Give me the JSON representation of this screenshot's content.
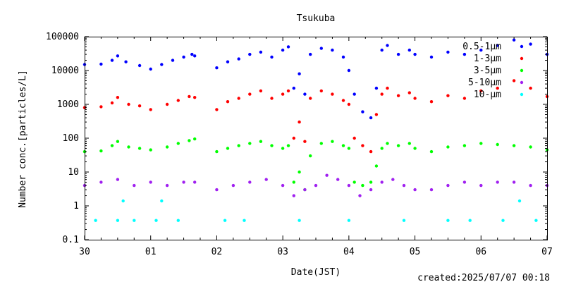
{
  "chart_data": {
    "type": "scatter",
    "title": "Tsukuba",
    "xlabel": "Date(JST)",
    "ylabel": "Number conc.[particles/L]",
    "y_scale": "log",
    "ylim": [
      0.1,
      100000
    ],
    "xlim": [
      "2025-06-30",
      "2025-07-07"
    ],
    "x_ticks": [
      "30",
      "01",
      "02",
      "03",
      "04",
      "05",
      "06",
      "07"
    ],
    "y_ticks": [
      "0.1",
      "1",
      "10",
      "100",
      "1000",
      "10000",
      "100000"
    ],
    "grid": false,
    "legend_position": "top-right",
    "footer": "created:2025/07/07 00:18",
    "series": [
      {
        "name": "0.5-1μm",
        "color": "#0000ff",
        "points": [
          [
            "2025-06-30 00:00",
            15000
          ],
          [
            "2025-06-30 06:00",
            15500
          ],
          [
            "2025-06-30 10:00",
            20000
          ],
          [
            "2025-06-30 12:00",
            27000
          ],
          [
            "2025-06-30 15:00",
            18000
          ],
          [
            "2025-06-30 20:00",
            14000
          ],
          [
            "2025-07-01 00:00",
            11000
          ],
          [
            "2025-07-01 04:00",
            15000
          ],
          [
            "2025-07-01 08:00",
            20000
          ],
          [
            "2025-07-01 12:00",
            25000
          ],
          [
            "2025-07-01 15:00",
            30000
          ],
          [
            "2025-07-01 16:00",
            27000
          ],
          [
            "2025-07-02 00:00",
            12000
          ],
          [
            "2025-07-02 04:00",
            18000
          ],
          [
            "2025-07-02 08:00",
            22000
          ],
          [
            "2025-07-02 12:00",
            30000
          ],
          [
            "2025-07-02 16:00",
            35000
          ],
          [
            "2025-07-02 20:00",
            25000
          ],
          [
            "2025-07-03 00:00",
            40000
          ],
          [
            "2025-07-03 02:00",
            50000
          ],
          [
            "2025-07-03 04:00",
            3000
          ],
          [
            "2025-07-03 06:00",
            8000
          ],
          [
            "2025-07-03 08:00",
            2000
          ],
          [
            "2025-07-03 10:00",
            30000
          ],
          [
            "2025-07-03 14:00",
            45000
          ],
          [
            "2025-07-03 18:00",
            40000
          ],
          [
            "2025-07-03 22:00",
            25000
          ],
          [
            "2025-07-04 00:00",
            10000
          ],
          [
            "2025-07-04 02:00",
            2000
          ],
          [
            "2025-07-04 05:00",
            600
          ],
          [
            "2025-07-04 08:00",
            400
          ],
          [
            "2025-07-04 10:00",
            3000
          ],
          [
            "2025-07-04 12:00",
            40000
          ],
          [
            "2025-07-04 14:00",
            55000
          ],
          [
            "2025-07-04 18:00",
            30000
          ],
          [
            "2025-07-04 22:00",
            40000
          ],
          [
            "2025-07-05 00:00",
            30000
          ],
          [
            "2025-07-05 06:00",
            25000
          ],
          [
            "2025-07-05 12:00",
            35000
          ],
          [
            "2025-07-05 18:00",
            30000
          ],
          [
            "2025-07-06 00:00",
            40000
          ],
          [
            "2025-07-06 06:00",
            55000
          ],
          [
            "2025-07-06 12:00",
            80000
          ],
          [
            "2025-07-06 18:00",
            60000
          ],
          [
            "2025-07-07 00:00",
            30000
          ]
        ]
      },
      {
        "name": "1-3μm",
        "color": "#ff0000",
        "points": [
          [
            "2025-06-30 00:00",
            800
          ],
          [
            "2025-06-30 06:00",
            850
          ],
          [
            "2025-06-30 10:00",
            1100
          ],
          [
            "2025-06-30 12:00",
            1600
          ],
          [
            "2025-06-30 16:00",
            1000
          ],
          [
            "2025-06-30 20:00",
            900
          ],
          [
            "2025-07-01 00:00",
            700
          ],
          [
            "2025-07-01 06:00",
            1000
          ],
          [
            "2025-07-01 10:00",
            1300
          ],
          [
            "2025-07-01 14:00",
            1700
          ],
          [
            "2025-07-01 16:00",
            1600
          ],
          [
            "2025-07-02 00:00",
            700
          ],
          [
            "2025-07-02 04:00",
            1200
          ],
          [
            "2025-07-02 08:00",
            1500
          ],
          [
            "2025-07-02 12:00",
            2000
          ],
          [
            "2025-07-02 16:00",
            2500
          ],
          [
            "2025-07-02 20:00",
            1500
          ],
          [
            "2025-07-03 00:00",
            2000
          ],
          [
            "2025-07-03 02:00",
            2500
          ],
          [
            "2025-07-03 04:00",
            100
          ],
          [
            "2025-07-03 06:00",
            300
          ],
          [
            "2025-07-03 08:00",
            80
          ],
          [
            "2025-07-03 10:00",
            1500
          ],
          [
            "2025-07-03 14:00",
            2500
          ],
          [
            "2025-07-03 18:00",
            2000
          ],
          [
            "2025-07-03 22:00",
            1300
          ],
          [
            "2025-07-04 00:00",
            1000
          ],
          [
            "2025-07-04 02:00",
            100
          ],
          [
            "2025-07-04 05:00",
            60
          ],
          [
            "2025-07-04 08:00",
            40
          ],
          [
            "2025-07-04 10:00",
            500
          ],
          [
            "2025-07-04 12:00",
            2000
          ],
          [
            "2025-07-04 14:00",
            3000
          ],
          [
            "2025-07-04 18:00",
            1800
          ],
          [
            "2025-07-04 22:00",
            2200
          ],
          [
            "2025-07-05 00:00",
            1500
          ],
          [
            "2025-07-05 06:00",
            1200
          ],
          [
            "2025-07-05 12:00",
            1800
          ],
          [
            "2025-07-05 18:00",
            1500
          ],
          [
            "2025-07-06 00:00",
            2500
          ],
          [
            "2025-07-06 06:00",
            3000
          ],
          [
            "2025-07-06 12:00",
            5000
          ],
          [
            "2025-07-06 18:00",
            3000
          ],
          [
            "2025-07-07 00:00",
            1700
          ]
        ]
      },
      {
        "name": "3-5μm",
        "color": "#00ff00",
        "points": [
          [
            "2025-06-30 00:00",
            40
          ],
          [
            "2025-06-30 06:00",
            42
          ],
          [
            "2025-06-30 10:00",
            60
          ],
          [
            "2025-06-30 12:00",
            80
          ],
          [
            "2025-06-30 16:00",
            55
          ],
          [
            "2025-06-30 20:00",
            50
          ],
          [
            "2025-07-01 00:00",
            45
          ],
          [
            "2025-07-01 06:00",
            55
          ],
          [
            "2025-07-01 10:00",
            70
          ],
          [
            "2025-07-01 14:00",
            85
          ],
          [
            "2025-07-01 16:00",
            95
          ],
          [
            "2025-07-02 00:00",
            40
          ],
          [
            "2025-07-02 04:00",
            50
          ],
          [
            "2025-07-02 08:00",
            60
          ],
          [
            "2025-07-02 12:00",
            70
          ],
          [
            "2025-07-02 16:00",
            80
          ],
          [
            "2025-07-02 20:00",
            60
          ],
          [
            "2025-07-03 00:00",
            50
          ],
          [
            "2025-07-03 02:00",
            60
          ],
          [
            "2025-07-03 04:00",
            5
          ],
          [
            "2025-07-03 06:00",
            10
          ],
          [
            "2025-07-03 08:00",
            3
          ],
          [
            "2025-07-03 10:00",
            30
          ],
          [
            "2025-07-03 14:00",
            70
          ],
          [
            "2025-07-03 18:00",
            80
          ],
          [
            "2025-07-03 22:00",
            60
          ],
          [
            "2025-07-04 00:00",
            50
          ],
          [
            "2025-07-04 02:00",
            5
          ],
          [
            "2025-07-04 05:00",
            4
          ],
          [
            "2025-07-04 08:00",
            5
          ],
          [
            "2025-07-04 10:00",
            15
          ],
          [
            "2025-07-04 12:00",
            50
          ],
          [
            "2025-07-04 14:00",
            70
          ],
          [
            "2025-07-04 18:00",
            60
          ],
          [
            "2025-07-04 22:00",
            70
          ],
          [
            "2025-07-05 00:00",
            50
          ],
          [
            "2025-07-05 06:00",
            40
          ],
          [
            "2025-07-05 12:00",
            55
          ],
          [
            "2025-07-05 18:00",
            60
          ],
          [
            "2025-07-06 00:00",
            70
          ],
          [
            "2025-07-06 06:00",
            65
          ],
          [
            "2025-07-06 12:00",
            60
          ],
          [
            "2025-07-06 18:00",
            55
          ],
          [
            "2025-07-07 00:00",
            45
          ]
        ]
      },
      {
        "name": "5-10μm",
        "color": "#a020f0",
        "points": [
          [
            "2025-06-30 00:00",
            4
          ],
          [
            "2025-06-30 06:00",
            5
          ],
          [
            "2025-06-30 12:00",
            6
          ],
          [
            "2025-06-30 18:00",
            4
          ],
          [
            "2025-07-01 00:00",
            5
          ],
          [
            "2025-07-01 06:00",
            4
          ],
          [
            "2025-07-01 12:00",
            5
          ],
          [
            "2025-07-01 16:00",
            5
          ],
          [
            "2025-07-02 00:00",
            3
          ],
          [
            "2025-07-02 06:00",
            4
          ],
          [
            "2025-07-02 12:00",
            5
          ],
          [
            "2025-07-02 18:00",
            6
          ],
          [
            "2025-07-03 00:00",
            4
          ],
          [
            "2025-07-03 04:00",
            2
          ],
          [
            "2025-07-03 08:00",
            3
          ],
          [
            "2025-07-03 12:00",
            4
          ],
          [
            "2025-07-03 16:00",
            8
          ],
          [
            "2025-07-03 20:00",
            6
          ],
          [
            "2025-07-04 00:00",
            4
          ],
          [
            "2025-07-04 04:00",
            2
          ],
          [
            "2025-07-04 08:00",
            3
          ],
          [
            "2025-07-04 12:00",
            5
          ],
          [
            "2025-07-04 16:00",
            6
          ],
          [
            "2025-07-04 20:00",
            4
          ],
          [
            "2025-07-05 00:00",
            3
          ],
          [
            "2025-07-05 06:00",
            3
          ],
          [
            "2025-07-05 12:00",
            4
          ],
          [
            "2025-07-05 18:00",
            5
          ],
          [
            "2025-07-06 00:00",
            4
          ],
          [
            "2025-07-06 06:00",
            5
          ],
          [
            "2025-07-06 12:00",
            5
          ],
          [
            "2025-07-06 18:00",
            4
          ],
          [
            "2025-07-07 00:00",
            4
          ]
        ]
      },
      {
        "name": "10-μm",
        "color": "#00ffff",
        "points": [
          [
            "2025-06-30 04:00",
            0.37
          ],
          [
            "2025-06-30 12:00",
            0.37
          ],
          [
            "2025-06-30 18:00",
            0.37
          ],
          [
            "2025-07-01 02:00",
            0.37
          ],
          [
            "2025-07-01 10:00",
            0.37
          ],
          [
            "2025-06-30 14:00",
            1.4
          ],
          [
            "2025-07-01 04:00",
            1.4
          ],
          [
            "2025-07-02 03:00",
            0.37
          ],
          [
            "2025-07-02 10:00",
            0.37
          ],
          [
            "2025-07-03 06:00",
            0.37
          ],
          [
            "2025-07-04 00:00",
            0.37
          ],
          [
            "2025-07-04 20:00",
            0.37
          ],
          [
            "2025-07-05 12:00",
            0.37
          ],
          [
            "2025-07-05 20:00",
            0.37
          ],
          [
            "2025-07-06 08:00",
            0.37
          ],
          [
            "2025-07-06 14:00",
            1.4
          ],
          [
            "2025-07-06 20:00",
            0.37
          ]
        ]
      }
    ]
  }
}
